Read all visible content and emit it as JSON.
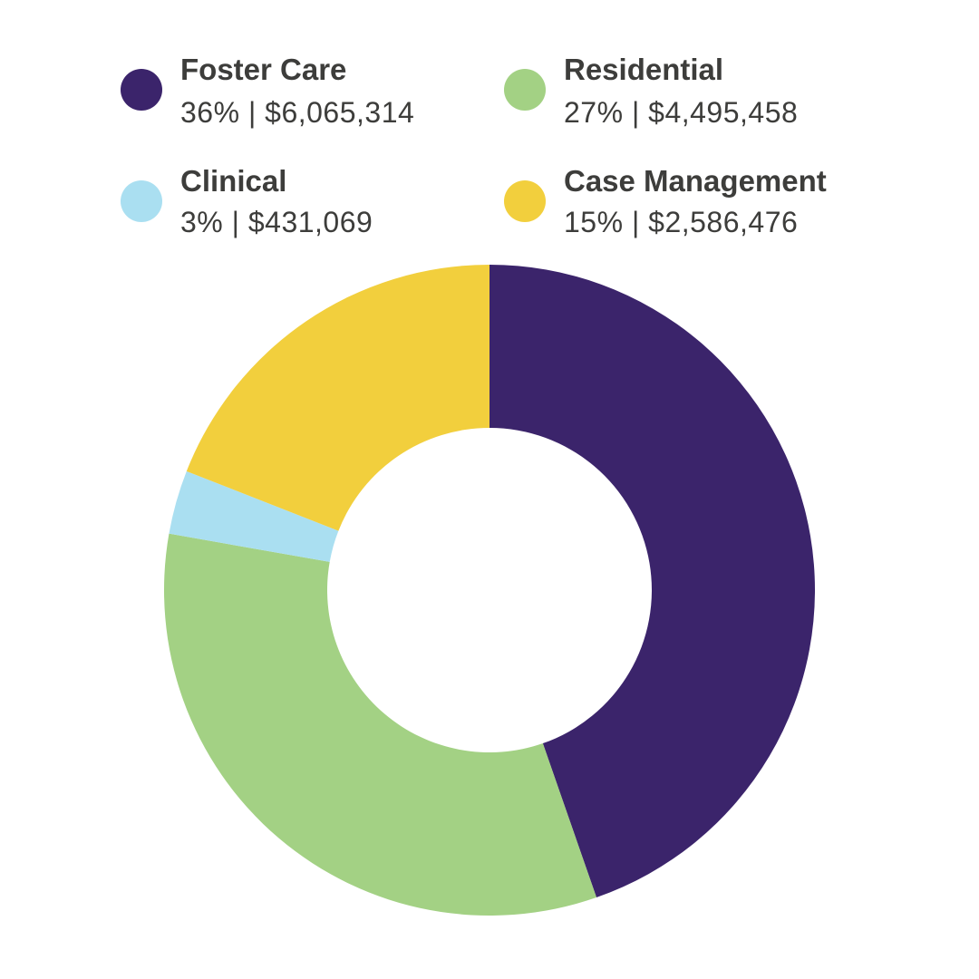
{
  "chart_data": {
    "type": "pie",
    "subtype": "donut",
    "title": "",
    "start_angle_deg": 0,
    "direction": "clockwise",
    "slices": [
      {
        "label": "Foster Care",
        "percent_label": "36%",
        "amount_label": "$6,065,314",
        "value": 6065314,
        "color": "#3b246b"
      },
      {
        "label": "Residential",
        "percent_label": "27%",
        "amount_label": "$4,495,458",
        "value": 4495458,
        "color": "#a3d184"
      },
      {
        "label": "Clinical",
        "percent_label": "3%",
        "amount_label": "$431,069",
        "value": 431069,
        "color": "#aadff1"
      },
      {
        "label": "Case Management",
        "percent_label": "15%",
        "amount_label": "$2,586,476",
        "value": 2586476,
        "color": "#f2cf3d"
      }
    ],
    "legend": {
      "placement": "top",
      "columns": 2,
      "order": [
        "Foster Care",
        "Residential",
        "Clinical",
        "Case Management"
      ]
    }
  },
  "legend_items": [
    {
      "name": "Foster Care",
      "value": "36% | $6,065,314",
      "color": "#3b246b"
    },
    {
      "name": "Residential",
      "value": "27% | $4,495,458",
      "color": "#a3d184"
    },
    {
      "name": "Clinical",
      "value": "3% | $431,069",
      "color": "#aadff1"
    },
    {
      "name": "Case Management",
      "value": "15% | $2,586,476",
      "color": "#f2cf3d"
    }
  ]
}
